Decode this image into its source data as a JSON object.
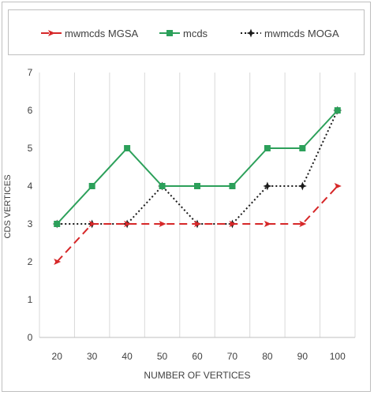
{
  "chart_data": {
    "type": "line",
    "xlabel": "NUMBER OF VERTICES",
    "ylabel": "CDS VERTICES",
    "categories": [
      "20",
      "30",
      "40",
      "50",
      "60",
      "70",
      "80",
      "90",
      "100"
    ],
    "ylim": [
      0,
      7
    ],
    "yticks": [
      0,
      1,
      2,
      3,
      4,
      5,
      6,
      7
    ],
    "grid": "vertical",
    "legend_position": "top",
    "series": [
      {
        "name": "mwmcds MGSA",
        "values": [
          2,
          3,
          3,
          3,
          3,
          3,
          3,
          3,
          4
        ],
        "color": "#d62728",
        "style": "dashed",
        "marker": "arrow"
      },
      {
        "name": "mcds",
        "values": [
          3,
          4,
          5,
          4,
          4,
          4,
          5,
          5,
          6
        ],
        "color": "#2ca05a",
        "style": "solid",
        "marker": "square"
      },
      {
        "name": "mwmcds MOGA",
        "values": [
          3,
          3,
          3,
          4,
          3,
          3,
          4,
          4,
          6
        ],
        "color": "#1a1a1a",
        "style": "dotted",
        "marker": "star"
      }
    ]
  }
}
